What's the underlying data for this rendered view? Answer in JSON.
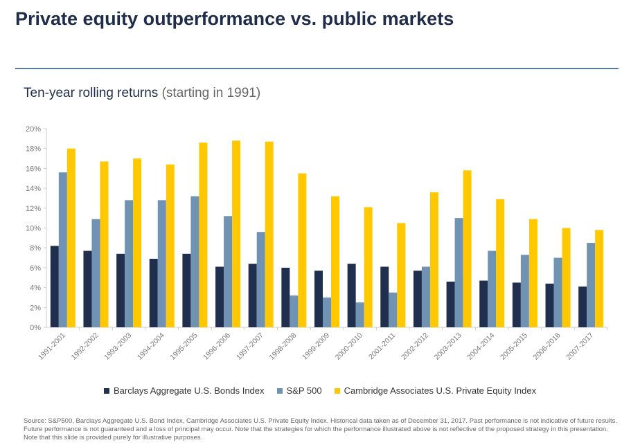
{
  "title": "Private equity outperformance vs. public markets",
  "subtitle_main": "Ten-year rolling returns ",
  "subtitle_paren": "(starting in 1991)",
  "footer": "Source: S&P500, Barclays Aggregate U.S. Bond Index, Cambridge Associates U.S. Private Equity Index. Historical data taken as of December 31, 2017. Past performance is not indicative of future results. Future performance is not guaranteed and a loss of principal may occur. Note that the strategies for which the performance illustrated above is not reflective of the proposed strategy in this presentation. Note that this slide is provided purely for illustrative purposes.",
  "chart_data": {
    "type": "bar",
    "title": "Ten-year rolling returns (starting in 1991)",
    "categories": [
      "1991-2001",
      "1992-2002",
      "1993-2003",
      "1994-2004",
      "1995-2005",
      "1996-2006",
      "1997-2007",
      "1998-2008",
      "1999-2009",
      "2000-2010",
      "2001-2011",
      "2002-2012",
      "2003-2013",
      "2004-2014",
      "2005-2015",
      "2006-2016",
      "2007-2017"
    ],
    "series": [
      {
        "name": "Barclays Aggregate U.S. Bonds Index",
        "color": "#1f2f4d",
        "values": [
          8.2,
          7.7,
          7.4,
          6.9,
          7.4,
          6.1,
          6.4,
          6.0,
          5.7,
          6.4,
          6.1,
          5.7,
          4.6,
          4.7,
          4.5,
          4.4,
          4.1
        ]
      },
      {
        "name": "S&P 500",
        "color": "#7093b3",
        "values": [
          15.6,
          10.9,
          12.8,
          12.8,
          13.2,
          11.2,
          9.6,
          3.2,
          3.0,
          2.5,
          3.5,
          6.1,
          11.0,
          7.7,
          7.3,
          7.0,
          8.5
        ]
      },
      {
        "name": "Cambridge Associates U.S. Private Equity Index",
        "color": "#ffc800",
        "values": [
          18.0,
          16.7,
          17.0,
          16.4,
          18.6,
          18.8,
          18.7,
          15.5,
          13.2,
          12.1,
          10.5,
          13.6,
          15.8,
          12.9,
          10.9,
          10.0,
          9.8
        ]
      }
    ],
    "yticks": [
      "0%",
      "2%",
      "4%",
      "6%",
      "8%",
      "10%",
      "12%",
      "14%",
      "16%",
      "18%",
      "20%"
    ],
    "ylim": [
      0,
      20
    ],
    "grid": false,
    "legend": "bottom"
  }
}
